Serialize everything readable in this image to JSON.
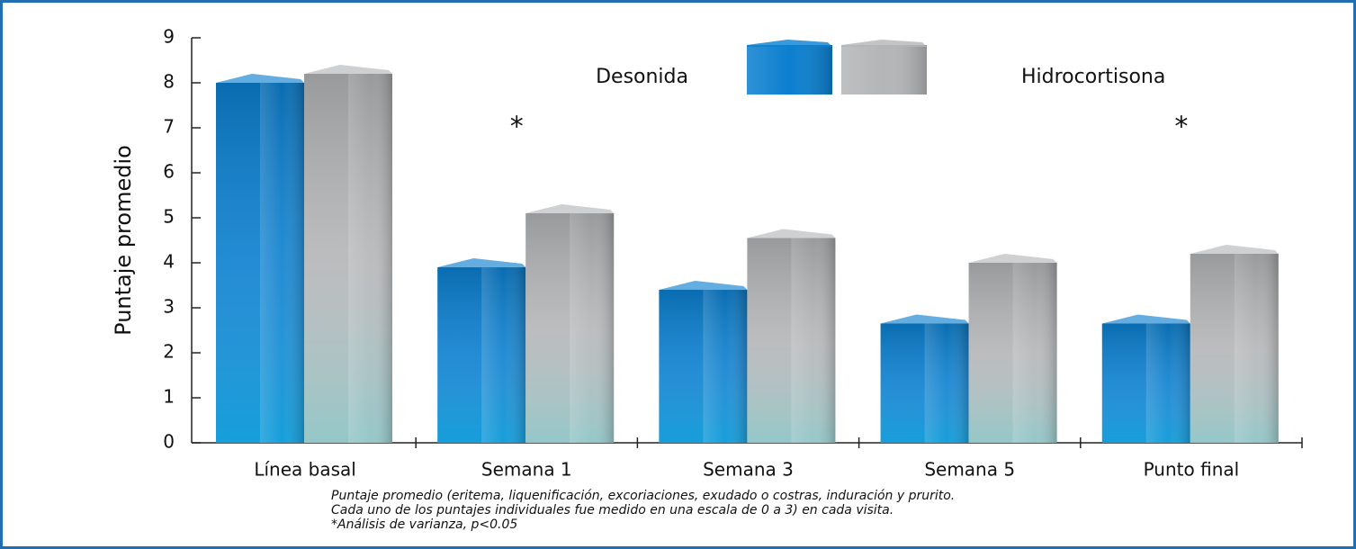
{
  "chart_data": {
    "type": "bar",
    "y_label": "Puntaje promedio",
    "categories": [
      "Línea basal",
      "Semana 1",
      "Semana 3",
      "Semana 5",
      "Punto final"
    ],
    "series": [
      {
        "name": "Desonida",
        "color": "#0b7fcf",
        "values": [
          8.0,
          3.9,
          3.4,
          2.65,
          2.65
        ]
      },
      {
        "name": "Hidrocortisona",
        "color": "#b4b5b7",
        "values": [
          8.2,
          5.1,
          4.55,
          4.0,
          4.2
        ]
      }
    ],
    "ylim": [
      0,
      9
    ],
    "yticks": [
      0,
      1,
      2,
      3,
      4,
      5,
      6,
      7,
      8,
      9
    ],
    "annotations": [
      {
        "category": "Semana 1",
        "text": "*"
      },
      {
        "category": "Punto final",
        "text": "*"
      }
    ],
    "notes": [
      "Puntaje promedio (eritema, liquenificación, excoriaciones, exudado o costras, induración y prurito.",
      "Cada uno de los puntajes individuales fue medido en una escala de 0 a 3) en cada visita.",
      "*Análisis de varianza, p<0.05"
    ]
  }
}
